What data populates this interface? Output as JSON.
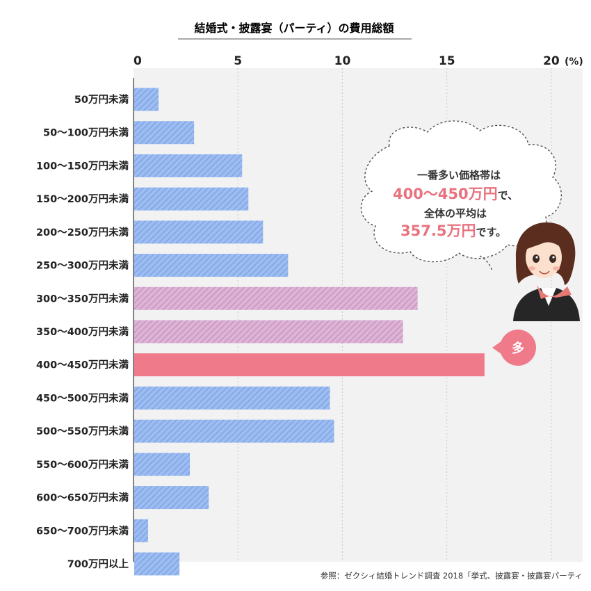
{
  "chart_data": {
    "type": "bar",
    "orientation": "horizontal",
    "title": "結婚式・披露宴（パーティ）の費用総額",
    "xlim": [
      0,
      21.5
    ],
    "xticks": [
      0,
      5,
      10,
      15,
      20
    ],
    "unit_label": "(%)",
    "grid": "vertical dotted",
    "categories": [
      "50万円未満",
      "50〜100万円未満",
      "100〜150万円未満",
      "150〜200万円未満",
      "200〜250万円未満",
      "250〜300万円未満",
      "300〜350万円未満",
      "350〜400万円未満",
      "400〜450万円未満",
      "450〜500万円未満",
      "500〜550万円未満",
      "550〜600万円未満",
      "600〜650万円未満",
      "650〜700万円未満",
      "700万円以上"
    ],
    "values": [
      1.2,
      2.9,
      5.2,
      5.5,
      6.2,
      7.4,
      13.6,
      12.9,
      16.8,
      9.4,
      9.6,
      2.7,
      3.6,
      0.7,
      2.2
    ],
    "highlight": {
      "categories": [
        "300〜350万円未満",
        "350〜400万円未満"
      ],
      "top_category": "400〜450万円未満"
    },
    "colors": {
      "normal": "#8fb4ef",
      "highlight": "#d7a8cf",
      "top": "#ef7a8a",
      "plot_bg": "#f2f2f2"
    },
    "badge": "多",
    "source": "参照：ゼクシィ結婚トレンド調査 2018「挙式、披露宴・披露宴パーティ"
  },
  "callout": {
    "line1": "一番多い価格帯は",
    "highlight1": "400〜450万円",
    "suffix1": "で、",
    "line3": "全体の平均は",
    "highlight2": "357.5万円",
    "suffix2": "です。"
  }
}
